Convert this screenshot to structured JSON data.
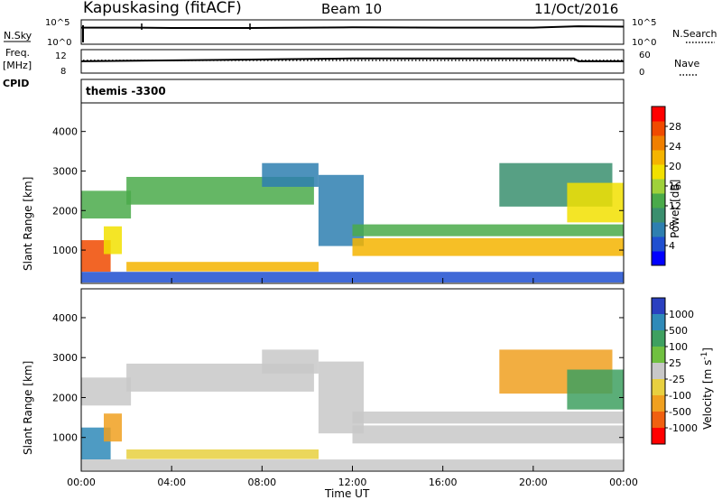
{
  "header": {
    "station": "Kapuskasing (fitACF)",
    "beam": "Beam 10",
    "date": "11/Oct/2016"
  },
  "noise_panel": {
    "left_label": "N.Sky",
    "left_ticks": [
      "10^5",
      "10^0"
    ],
    "right_ticks": [
      "10^5",
      "10^0"
    ],
    "right_label": "N.Search"
  },
  "freq_panel": {
    "left_label_top": "Freq.",
    "left_label_unit": "[MHz]",
    "left_ticks": [
      "12",
      "8"
    ],
    "right_ticks": [
      "60",
      "0"
    ],
    "right_label": "Nave",
    "cpid_label": "CPID",
    "cpid_value": "themis -3300"
  },
  "power_panel": {
    "ylabel": "Slant Range [km]",
    "yticks": [
      "4000",
      "3000",
      "2000",
      "1000"
    ],
    "colorbar_label": "Power [dB]",
    "colorbar_ticks": [
      "28",
      "24",
      "20",
      "16",
      "12",
      "8",
      "4"
    ],
    "colors": [
      "#0000ff",
      "#1f4fd0",
      "#2e7fb0",
      "#3a8f6e",
      "#4aaa4a",
      "#9fd13a",
      "#f2e000",
      "#f5b400",
      "#f07f00",
      "#f04a00",
      "#ff0000"
    ]
  },
  "velocity_panel": {
    "ylabel": "Slant Range [km]",
    "yticks": [
      "4000",
      "3000",
      "2000",
      "1000"
    ],
    "colorbar_label": "Velocity [m s^-1]",
    "colorbar_ticks": [
      "1000",
      "500",
      "100",
      "25",
      "-25",
      "-100",
      "-500",
      "-1000"
    ],
    "colors": [
      "#2a40c0",
      "#2f8ab8",
      "#3ea060",
      "#70c040",
      "#c8c8c8",
      "#e8d040",
      "#f0a020",
      "#f06010",
      "#ff0000"
    ]
  },
  "xaxis": {
    "label": "Time UT",
    "ticks": [
      "00:00",
      "04:00",
      "08:00",
      "12:00",
      "16:00",
      "20:00",
      "00:00"
    ]
  },
  "chart_data": [
    {
      "type": "line",
      "title": "Kapuskasing (fitACF) Beam 10 11/Oct/2016",
      "x_unit": "hours UT",
      "series": [
        {
          "name": "N.Sky",
          "x": [
            0,
            2.5,
            4,
            7.5,
            12,
            16,
            20,
            22,
            24
          ],
          "y": [
            3000,
            3000,
            2500,
            2500,
            3500,
            3000,
            3000,
            6000,
            5000
          ]
        },
        {
          "name": "N.Search",
          "x": [
            0,
            2.5,
            7.5,
            12,
            20,
            24
          ],
          "y": [
            3000,
            30000,
            30000,
            4000,
            3000,
            5000
          ]
        }
      ],
      "ylim": [
        1,
        100000
      ],
      "log_y": true
    },
    {
      "type": "line",
      "series": [
        {
          "name": "Freq.",
          "x": [
            0,
            12,
            21.8,
            22,
            24
          ],
          "y": [
            10.1,
            10.6,
            10.6,
            10.1,
            10.1
          ]
        },
        {
          "name": "Nave",
          "x": [
            0,
            24
          ],
          "y": [
            34,
            34
          ]
        }
      ],
      "ylim_freq": [
        8,
        12
      ],
      "ylim_nave": [
        0,
        60
      ]
    },
    {
      "type": "heatmap",
      "ylabel": "Slant Range [km]",
      "xlabel": "Time UT",
      "colorbar": "Power [dB]",
      "xlim": [
        0,
        24
      ],
      "ylim": [
        180,
        4700
      ],
      "regions": [
        {
          "t": [
            0.0,
            1.3
          ],
          "r": [
            450,
            1250
          ],
          "power": 26
        },
        {
          "t": [
            0.0,
            2.2
          ],
          "r": [
            1800,
            2500
          ],
          "power": 12
        },
        {
          "t": [
            1.0,
            1.8
          ],
          "r": [
            900,
            1600
          ],
          "power": 18
        },
        {
          "t": [
            2.0,
            10.3
          ],
          "r": [
            2150,
            2850
          ],
          "power": 12
        },
        {
          "t": [
            8.0,
            10.5
          ],
          "r": [
            2600,
            3200
          ],
          "power": 8
        },
        {
          "t": [
            2.0,
            10.5
          ],
          "r": [
            460,
            700
          ],
          "power": 22
        },
        {
          "t": [
            10.5,
            12.5
          ],
          "r": [
            1100,
            2900
          ],
          "power": 8
        },
        {
          "t": [
            12.0,
            24.0
          ],
          "r": [
            1350,
            1650
          ],
          "power": 12
        },
        {
          "t": [
            12.0,
            24.0
          ],
          "r": [
            850,
            1300
          ],
          "power": 22
        },
        {
          "t": [
            18.5,
            23.5
          ],
          "r": [
            2100,
            3200
          ],
          "power": 10
        },
        {
          "t": [
            21.5,
            24.0
          ],
          "r": [
            1700,
            2700
          ],
          "power": 20
        },
        {
          "t": [
            0.0,
            24.0
          ],
          "r": [
            180,
            450
          ],
          "power": 6
        }
      ]
    },
    {
      "type": "heatmap",
      "ylabel": "Slant Range [km]",
      "xlabel": "Time UT",
      "colorbar": "Velocity [m s^-1]",
      "xlim": [
        0,
        24
      ],
      "ylim": [
        180,
        4700
      ],
      "regions": [
        {
          "t": [
            0.0,
            1.3
          ],
          "r": [
            450,
            1250
          ],
          "velocity": 150
        },
        {
          "t": [
            0.0,
            2.2
          ],
          "r": [
            1800,
            2500
          ],
          "velocity": 0
        },
        {
          "t": [
            1.0,
            1.8
          ],
          "r": [
            900,
            1600
          ],
          "velocity": -300
        },
        {
          "t": [
            2.0,
            10.3
          ],
          "r": [
            2150,
            2850
          ],
          "velocity": 0
        },
        {
          "t": [
            8.0,
            10.5
          ],
          "r": [
            2600,
            3200
          ],
          "velocity": 0
        },
        {
          "t": [
            2.0,
            10.5
          ],
          "r": [
            460,
            700
          ],
          "velocity": -60
        },
        {
          "t": [
            10.5,
            12.5
          ],
          "r": [
            1100,
            2900
          ],
          "velocity": 0
        },
        {
          "t": [
            12.0,
            24.0
          ],
          "r": [
            1350,
            1650
          ],
          "velocity": 0
        },
        {
          "t": [
            12.0,
            24.0
          ],
          "r": [
            850,
            1300
          ],
          "velocity": 0
        },
        {
          "t": [
            18.5,
            23.5
          ],
          "r": [
            2100,
            3200
          ],
          "velocity": -200
        },
        {
          "t": [
            21.5,
            24.0
          ],
          "r": [
            1700,
            2700
          ],
          "velocity": 80
        },
        {
          "t": [
            0.0,
            24.0
          ],
          "r": [
            180,
            450
          ],
          "velocity": 0
        }
      ]
    }
  ]
}
